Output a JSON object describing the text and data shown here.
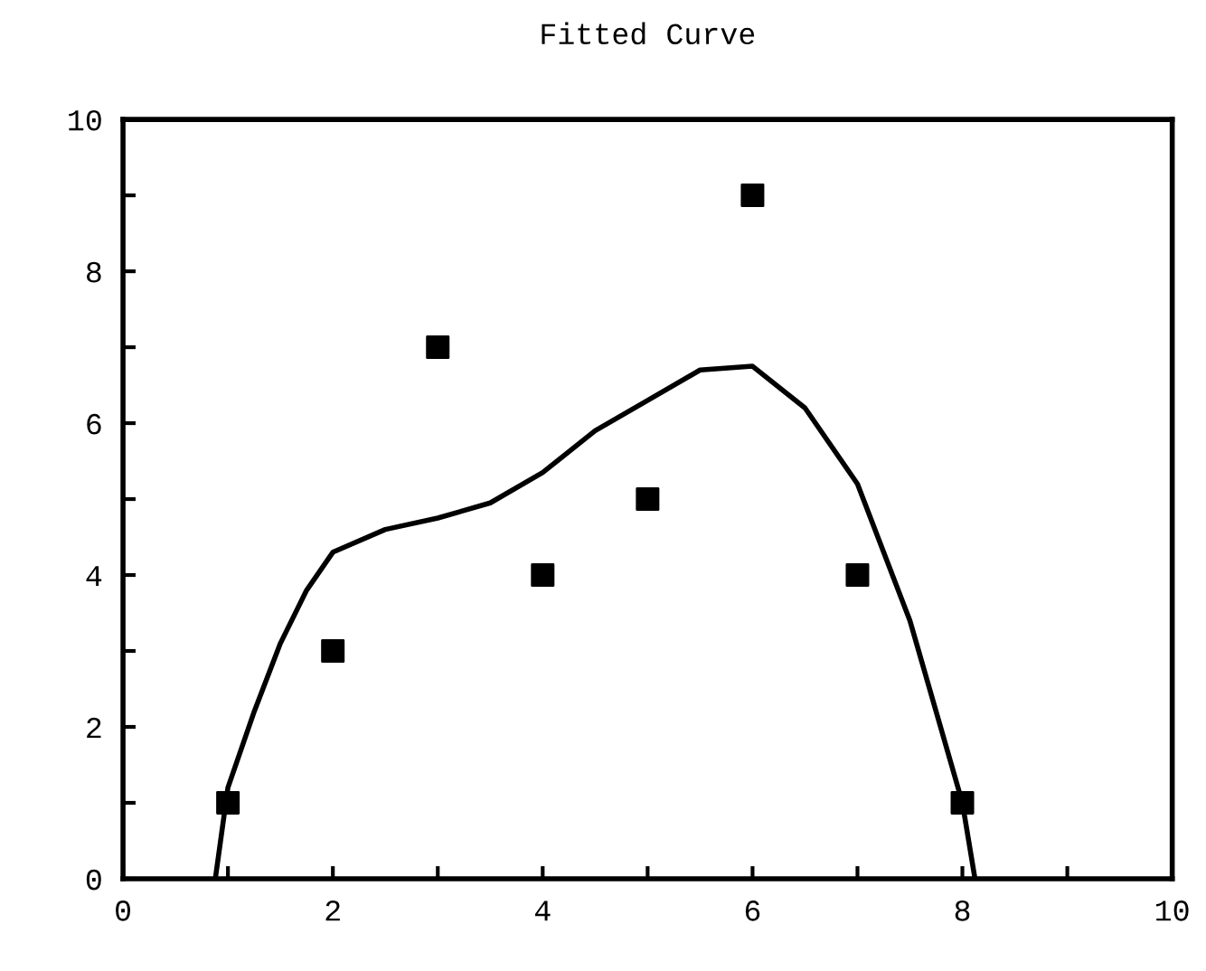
{
  "chart_data": {
    "type": "scatter",
    "title": "Fitted Curve",
    "xlim": [
      0,
      10
    ],
    "ylim": [
      0,
      10
    ],
    "xticks": [
      0,
      {
        "value": 1,
        "label": null
      },
      2,
      {
        "value": 3,
        "label": null
      },
      4,
      {
        "value": 5,
        "label": null
      },
      6,
      {
        "value": 7,
        "label": null
      },
      8,
      {
        "value": 9,
        "label": null
      },
      10
    ],
    "yticks": [
      0,
      {
        "value": 1,
        "label": null
      },
      2,
      {
        "value": 3,
        "label": null
      },
      4,
      {
        "value": 5,
        "label": null
      },
      6,
      {
        "value": 7,
        "label": null
      },
      8,
      {
        "value": 9,
        "label": null
      },
      10
    ],
    "grid": false,
    "legend": false,
    "series": [
      {
        "marker": "square",
        "color": "#000000",
        "x": [
          1,
          2,
          3,
          4,
          5,
          6,
          7,
          8
        ],
        "values": [
          1,
          3,
          7,
          4,
          5,
          9,
          4,
          1
        ]
      },
      {
        "type": "line",
        "marker": "none",
        "line_style": "solid",
        "color": "#000000",
        "x": [
          0.88,
          1,
          1.25,
          1.5,
          1.75,
          2,
          2.5,
          3,
          3.5,
          4,
          4.5,
          5,
          5.5,
          6,
          6.5,
          7,
          7.5,
          8,
          8.12
        ],
        "values": [
          0,
          1.2,
          2.2,
          3.1,
          3.8,
          4.3,
          4.6,
          4.75,
          4.95,
          5.35,
          5.9,
          6.3,
          6.7,
          6.75,
          6.2,
          5.2,
          3.4,
          1.0,
          0
        ]
      }
    ]
  }
}
